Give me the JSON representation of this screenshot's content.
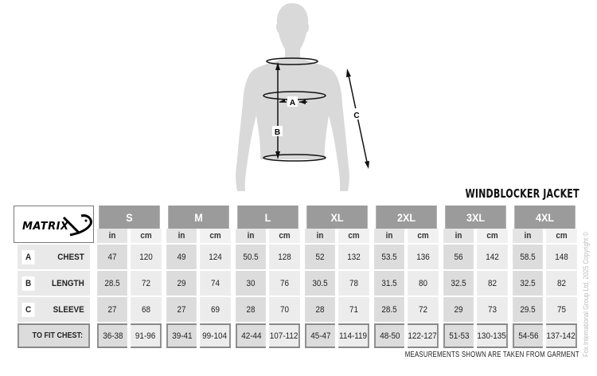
{
  "title": "WINDBLOCKER JACKET",
  "brand": "MATRIX",
  "figure_labels": {
    "a": "A",
    "b": "B",
    "c": "C"
  },
  "sizes": [
    "S",
    "M",
    "L",
    "XL",
    "2XL",
    "3XL",
    "4XL"
  ],
  "units": {
    "in": "in",
    "cm": "cm"
  },
  "rows": [
    {
      "letter": "A",
      "label": "CHEST",
      "values": [
        [
          "47",
          "120"
        ],
        [
          "49",
          "124"
        ],
        [
          "50.5",
          "128"
        ],
        [
          "52",
          "132"
        ],
        [
          "53.5",
          "136"
        ],
        [
          "56",
          "142"
        ],
        [
          "58.5",
          "148"
        ]
      ]
    },
    {
      "letter": "B",
      "label": "LENGTH",
      "values": [
        [
          "28.5",
          "72"
        ],
        [
          "29",
          "74"
        ],
        [
          "30",
          "76"
        ],
        [
          "30.5",
          "78"
        ],
        [
          "31.5",
          "80"
        ],
        [
          "32.5",
          "82"
        ],
        [
          "32.5",
          "82"
        ]
      ]
    },
    {
      "letter": "C",
      "label": "SLEEVE",
      "values": [
        [
          "27",
          "68"
        ],
        [
          "27",
          "69"
        ],
        [
          "28",
          "70"
        ],
        [
          "28",
          "71"
        ],
        [
          "28.5",
          "72"
        ],
        [
          "29",
          "73"
        ],
        [
          "29.5",
          "75"
        ]
      ]
    }
  ],
  "fit": {
    "label": "TO FIT CHEST:",
    "values": [
      [
        "36-38",
        "91-96"
      ],
      [
        "39-41",
        "99-104"
      ],
      [
        "42-44",
        "107-112"
      ],
      [
        "45-47",
        "114-119"
      ],
      [
        "48-50",
        "122-127"
      ],
      [
        "51-53",
        "130-135"
      ],
      [
        "54-56",
        "137-142"
      ]
    ]
  },
  "note": "MEASUREMENTS SHOWN ARE TAKEN FROM GARMENT",
  "copyright": "Fox International Group Ltd. 2025 Copyright ©"
}
